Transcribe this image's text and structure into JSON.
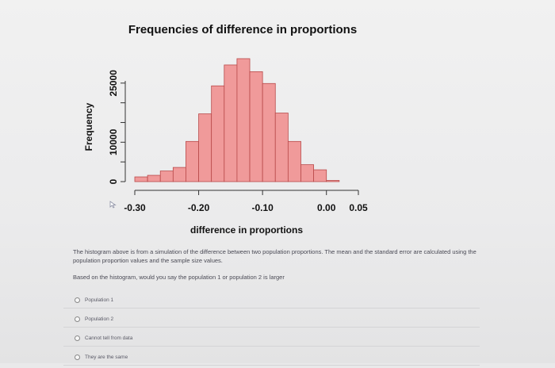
{
  "chart_data": {
    "type": "bar",
    "title": "Frequencies of difference in proportions",
    "xlabel": "difference in proportions",
    "ylabel": "Frequency",
    "xticks": [
      -0.3,
      -0.2,
      -0.1,
      0.0,
      0.05
    ],
    "xtick_labels": [
      "-0.30",
      "-0.20",
      "-0.10",
      "0.00",
      "0.05"
    ],
    "yticks": [
      0,
      10000,
      25000
    ],
    "ytick_labels": [
      "0",
      "10000",
      "25000"
    ],
    "xlim": [
      -0.31,
      0.05
    ],
    "ylim": [
      0,
      32000
    ],
    "bin_width": 0.02,
    "bins_start": [
      -0.3,
      -0.28,
      -0.26,
      -0.24,
      -0.22,
      -0.2,
      -0.18,
      -0.16,
      -0.14,
      -0.12,
      -0.1,
      -0.08,
      -0.06,
      -0.04,
      -0.02,
      0.0
    ],
    "values": [
      1200,
      1600,
      2700,
      3600,
      10200,
      17200,
      24300,
      29600,
      31200,
      27900,
      24900,
      17400,
      10200,
      4300,
      3000,
      300
    ],
    "bar_color": "#f09a9a",
    "bar_edge": "#b94a4a",
    "grid": false
  },
  "question": {
    "intro": "The histogram above is from a simulation of the difference between two population proportions. The mean and the standard error are calculated using the population proportion values and the sample size values.",
    "prompt": "Based on the histogram, would you say the population 1 or population 2 is larger"
  },
  "options": [
    {
      "label": "Population 1"
    },
    {
      "label": "Population 2"
    },
    {
      "label": "Cannot tell from data"
    },
    {
      "label": "They are the same"
    }
  ]
}
